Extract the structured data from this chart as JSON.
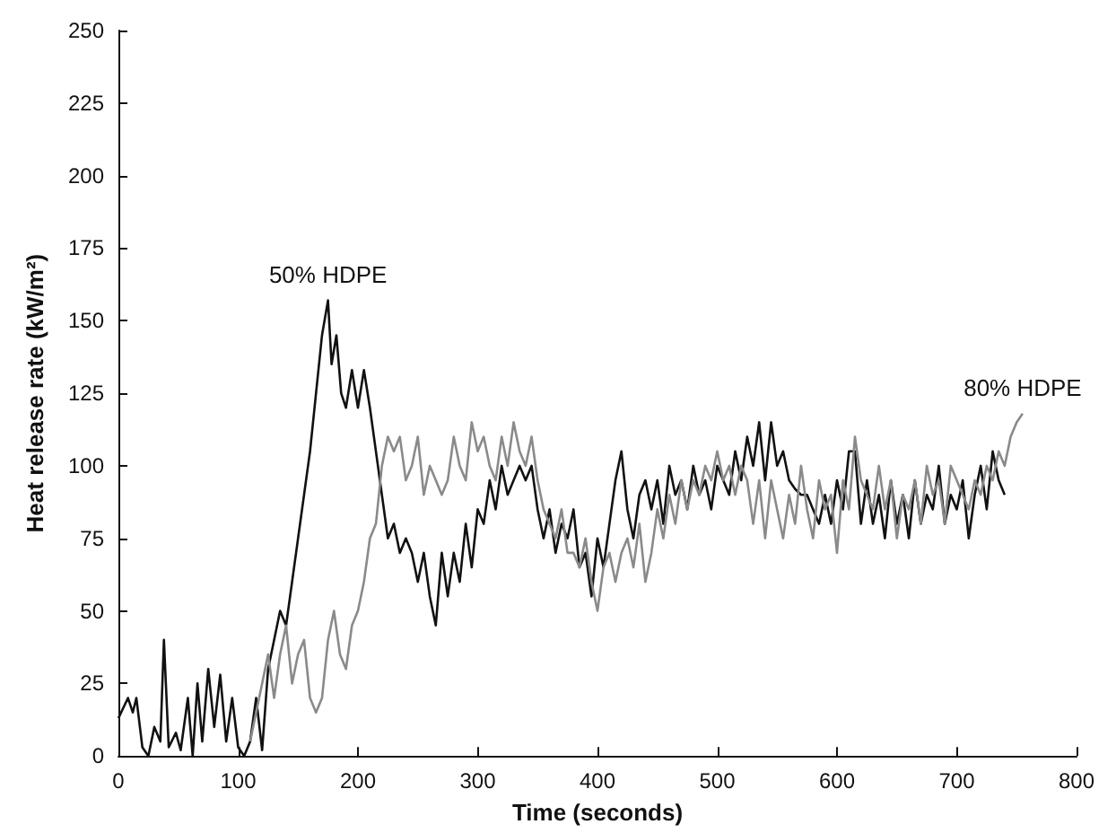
{
  "chart_data": {
    "type": "line",
    "xlabel": "Time (seconds)",
    "ylabel": "Heat release rate (kW/m²)",
    "xlim": [
      0,
      800
    ],
    "xticks": [
      0,
      100,
      200,
      300,
      400,
      500,
      600,
      700,
      800
    ],
    "ylim": [
      0,
      250
    ],
    "yticks": [
      0,
      25,
      50,
      75,
      100,
      125,
      150,
      175,
      200,
      225,
      250
    ],
    "grid": false,
    "legend": false,
    "marker": "none",
    "series": [
      {
        "name": "50% HDPE",
        "color": "#111111",
        "x": [
          0,
          8,
          12,
          15,
          20,
          25,
          30,
          35,
          38,
          42,
          48,
          52,
          58,
          62,
          66,
          70,
          75,
          80,
          85,
          90,
          95,
          100,
          105,
          110,
          115,
          120,
          125,
          130,
          135,
          140,
          145,
          150,
          155,
          160,
          165,
          170,
          175,
          178,
          182,
          186,
          190,
          195,
          200,
          205,
          210,
          215,
          220,
          225,
          230,
          235,
          240,
          245,
          250,
          255,
          260,
          265,
          270,
          275,
          280,
          285,
          290,
          295,
          300,
          305,
          310,
          315,
          320,
          325,
          330,
          335,
          340,
          345,
          350,
          355,
          360,
          365,
          370,
          375,
          380,
          385,
          390,
          395,
          400,
          405,
          410,
          415,
          420,
          425,
          430,
          435,
          440,
          445,
          450,
          455,
          460,
          465,
          470,
          475,
          480,
          485,
          490,
          495,
          500,
          505,
          510,
          515,
          520,
          525,
          530,
          535,
          540,
          545,
          550,
          555,
          560,
          565,
          570,
          575,
          580,
          585,
          590,
          595,
          600,
          605,
          610,
          615,
          620,
          625,
          630,
          635,
          640,
          645,
          650,
          655,
          660,
          665,
          670,
          675,
          680,
          685,
          690,
          695,
          700,
          705,
          710,
          715,
          720,
          725,
          730,
          735,
          740
        ],
        "values": [
          13,
          20,
          15,
          20,
          3,
          0,
          10,
          5,
          40,
          3,
          8,
          2,
          20,
          0,
          25,
          5,
          30,
          10,
          28,
          5,
          20,
          3,
          0,
          5,
          20,
          2,
          30,
          40,
          50,
          45,
          60,
          75,
          90,
          105,
          125,
          145,
          157,
          135,
          145,
          125,
          120,
          133,
          120,
          133,
          120,
          105,
          90,
          75,
          80,
          70,
          75,
          70,
          60,
          70,
          55,
          45,
          70,
          55,
          70,
          60,
          80,
          65,
          85,
          80,
          95,
          85,
          100,
          90,
          95,
          100,
          95,
          100,
          85,
          75,
          85,
          70,
          80,
          75,
          85,
          65,
          70,
          55,
          75,
          65,
          80,
          95,
          105,
          85,
          75,
          90,
          95,
          85,
          95,
          80,
          100,
          90,
          95,
          85,
          100,
          90,
          95,
          85,
          100,
          95,
          90,
          105,
          95,
          110,
          100,
          115,
          95,
          115,
          100,
          105,
          95,
          92,
          90,
          90,
          85,
          80,
          90,
          80,
          95,
          85,
          105,
          105,
          80,
          95,
          80,
          90,
          75,
          95,
          80,
          90,
          75,
          95,
          80,
          90,
          85,
          100,
          80,
          90,
          85,
          95,
          75,
          90,
          100,
          85,
          105,
          95,
          90
        ]
      },
      {
        "name": "80% HDPE",
        "color": "#8a8a8a",
        "x": [
          110,
          115,
          120,
          125,
          130,
          135,
          140,
          145,
          150,
          155,
          160,
          165,
          170,
          175,
          180,
          185,
          190,
          195,
          200,
          205,
          210,
          215,
          220,
          225,
          230,
          235,
          240,
          245,
          250,
          255,
          260,
          265,
          270,
          275,
          280,
          285,
          290,
          295,
          300,
          305,
          310,
          315,
          320,
          325,
          330,
          335,
          340,
          345,
          350,
          355,
          360,
          365,
          370,
          375,
          380,
          385,
          390,
          395,
          400,
          405,
          410,
          415,
          420,
          425,
          430,
          435,
          440,
          445,
          450,
          455,
          460,
          465,
          470,
          475,
          480,
          485,
          490,
          495,
          500,
          505,
          510,
          515,
          520,
          525,
          530,
          535,
          540,
          545,
          550,
          555,
          560,
          565,
          570,
          575,
          580,
          585,
          590,
          595,
          600,
          605,
          610,
          615,
          620,
          625,
          630,
          635,
          640,
          645,
          650,
          655,
          660,
          665,
          670,
          675,
          680,
          685,
          690,
          695,
          700,
          705,
          710,
          715,
          720,
          725,
          730,
          735,
          740,
          745,
          750,
          755
        ],
        "values": [
          5,
          15,
          25,
          35,
          20,
          35,
          45,
          25,
          35,
          40,
          20,
          15,
          20,
          40,
          50,
          35,
          30,
          45,
          50,
          60,
          75,
          80,
          100,
          110,
          105,
          110,
          95,
          100,
          110,
          90,
          100,
          95,
          90,
          95,
          110,
          100,
          95,
          115,
          105,
          110,
          100,
          95,
          110,
          100,
          115,
          105,
          100,
          110,
          95,
          85,
          80,
          75,
          85,
          70,
          70,
          65,
          75,
          60,
          50,
          65,
          70,
          60,
          70,
          75,
          65,
          80,
          60,
          70,
          85,
          75,
          90,
          80,
          95,
          85,
          95,
          90,
          100,
          95,
          105,
          95,
          100,
          90,
          100,
          95,
          80,
          95,
          75,
          95,
          85,
          75,
          90,
          80,
          100,
          85,
          75,
          95,
          85,
          90,
          70,
          95,
          85,
          110,
          95,
          90,
          85,
          100,
          85,
          95,
          75,
          90,
          85,
          95,
          80,
          100,
          90,
          95,
          80,
          100,
          95,
          90,
          85,
          95,
          90,
          100,
          95,
          105,
          100,
          110,
          115,
          118
        ]
      }
    ]
  }
}
